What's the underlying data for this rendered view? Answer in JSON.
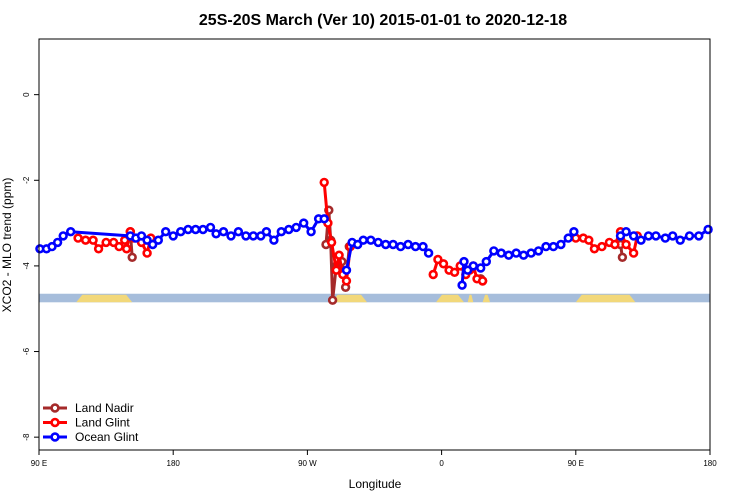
{
  "chart_data": {
    "type": "line",
    "title": "25S-20S March (Ver 10)   2015-01-01 to 2020-12-18",
    "xlabel": "Longitude",
    "ylabel": "XCO2 - MLO trend (ppm)",
    "xlim": [
      90,
      450
    ],
    "ylim": [
      -8.3,
      1.3
    ],
    "x_ticks": [
      {
        "value": 90,
        "label": "90 E"
      },
      {
        "value": 162,
        "label": "180"
      },
      {
        "value": 234,
        "label": "90 W"
      },
      {
        "value": 306,
        "label": "0"
      },
      {
        "value": 378,
        "label": "90 E"
      },
      {
        "value": 450,
        "label": "180"
      }
    ],
    "y_ticks": [
      {
        "value": 0,
        "label": "0"
      },
      {
        "value": -2,
        "label": "-2"
      },
      {
        "value": -4,
        "label": "-4"
      },
      {
        "value": -6,
        "label": "-6"
      },
      {
        "value": -8,
        "label": "-8"
      }
    ],
    "land_mask_band": {
      "y_range": [
        -4.85,
        -4.65
      ],
      "ocean_color": "#a6bddb",
      "land_color": "#f2d87a",
      "land_segments": [
        [
          110,
          140
        ],
        [
          247,
          266
        ],
        [
          303,
          318
        ],
        [
          320,
          323
        ],
        [
          328,
          332
        ],
        [
          378,
          410
        ]
      ]
    },
    "legend": {
      "position": "bottom-left"
    },
    "series": [
      {
        "name": "Land Nadir",
        "color": "#a52a2a",
        "segments": [
          [
            [
              139,
              -3.2
            ],
            [
              140,
              -3.8
            ]
          ],
          [
            [
              244,
              -3.5
            ],
            [
              245.5,
              -2.7
            ],
            [
              246.5,
              -3.4
            ],
            [
              247.5,
              -4.8
            ],
            [
              249.5,
              -4.0
            ],
            [
              252.5,
              -3.9
            ],
            [
              254.5,
              -4.5
            ],
            [
              256.5,
              -3.55
            ]
          ],
          [
            [
              327,
              -4.3
            ],
            [
              328,
              -4.35
            ]
          ],
          [
            [
              402,
              -3.5
            ],
            [
              403,
              -3.8
            ]
          ]
        ]
      },
      {
        "name": "Land Glint",
        "color": "#ff0000",
        "segments": [
          [
            [
              111,
              -3.35
            ],
            [
              115,
              -3.4
            ],
            [
              119,
              -3.4
            ],
            [
              122,
              -3.6
            ],
            [
              126,
              -3.45
            ],
            [
              130,
              -3.45
            ],
            [
              133,
              -3.55
            ],
            [
              136,
              -3.4
            ],
            [
              137,
              -3.6
            ],
            [
              139,
              -3.2
            ],
            [
              141,
              -3.35
            ],
            [
              145,
              -3.45
            ],
            [
              148,
              -3.7
            ],
            [
              150,
              -3.35
            ]
          ],
          [
            [
              243,
              -2.05
            ],
            [
              245,
              -3.0
            ],
            [
              247,
              -3.45
            ],
            [
              249.5,
              -4.1
            ],
            [
              251,
              -3.75
            ],
            [
              253,
              -4.2
            ],
            [
              255,
              -4.35
            ],
            [
              257,
              -3.55
            ]
          ],
          [
            [
              301.5,
              -4.2
            ],
            [
              304,
              -3.85
            ],
            [
              307,
              -3.95
            ],
            [
              310,
              -4.1
            ],
            [
              313,
              -4.15
            ],
            [
              316,
              -4.0
            ],
            [
              319,
              -4.2
            ],
            [
              321,
              -4.1
            ],
            [
              323,
              -4.0
            ],
            [
              325,
              -4.3
            ],
            [
              328,
              -4.35
            ]
          ],
          [
            [
              378,
              -3.35
            ],
            [
              382,
              -3.35
            ],
            [
              385,
              -3.4
            ],
            [
              388,
              -3.6
            ],
            [
              392,
              -3.55
            ],
            [
              396,
              -3.45
            ],
            [
              399,
              -3.5
            ],
            [
              402,
              -3.2
            ],
            [
              405,
              -3.5
            ],
            [
              409,
              -3.7
            ],
            [
              411,
              -3.3
            ]
          ]
        ]
      },
      {
        "name": "Ocean Glint",
        "color": "#0000ff",
        "segments": [
          [
            [
              90.5,
              -3.6
            ],
            [
              94,
              -3.6
            ],
            [
              97,
              -3.55
            ],
            [
              100,
              -3.45
            ],
            [
              103,
              -3.3
            ],
            [
              107,
              -3.2
            ],
            [
              139,
              -3.3
            ],
            [
              142,
              -3.35
            ],
            [
              145,
              -3.3
            ],
            [
              148,
              -3.4
            ],
            [
              151,
              -3.5
            ],
            [
              154,
              -3.4
            ],
            [
              158,
              -3.2
            ],
            [
              162,
              -3.3
            ],
            [
              166,
              -3.2
            ],
            [
              170,
              -3.15
            ],
            [
              174,
              -3.15
            ],
            [
              178,
              -3.15
            ],
            [
              182,
              -3.1
            ],
            [
              185,
              -3.25
            ],
            [
              189,
              -3.2
            ],
            [
              193,
              -3.3
            ],
            [
              197,
              -3.2
            ],
            [
              201,
              -3.3
            ],
            [
              205,
              -3.3
            ],
            [
              209,
              -3.3
            ],
            [
              212,
              -3.2
            ],
            [
              216,
              -3.4
            ],
            [
              220,
              -3.2
            ],
            [
              224,
              -3.15
            ],
            [
              228,
              -3.1
            ],
            [
              232,
              -3.0
            ],
            [
              236,
              -3.2
            ],
            [
              240,
              -2.9
            ],
            [
              243,
              -2.9
            ]
          ],
          [
            [
              255,
              -4.1
            ],
            [
              258,
              -3.45
            ],
            [
              261,
              -3.5
            ],
            [
              264,
              -3.4
            ],
            [
              268,
              -3.4
            ],
            [
              272,
              -3.45
            ],
            [
              276,
              -3.5
            ],
            [
              280,
              -3.5
            ],
            [
              284,
              -3.55
            ],
            [
              288,
              -3.5
            ],
            [
              292,
              -3.55
            ],
            [
              296,
              -3.55
            ],
            [
              299,
              -3.7
            ]
          ],
          [
            [
              317,
              -4.45
            ],
            [
              318,
              -3.9
            ],
            [
              320,
              -4.1
            ],
            [
              323,
              -4.0
            ],
            [
              327,
              -4.05
            ],
            [
              330,
              -3.9
            ],
            [
              334,
              -3.65
            ],
            [
              338,
              -3.7
            ],
            [
              342,
              -3.75
            ],
            [
              346,
              -3.7
            ],
            [
              350,
              -3.75
            ],
            [
              354,
              -3.7
            ],
            [
              358,
              -3.65
            ],
            [
              362,
              -3.55
            ],
            [
              366,
              -3.55
            ],
            [
              370,
              -3.5
            ],
            [
              374,
              -3.35
            ],
            [
              377,
              -3.2
            ]
          ],
          [
            [
              402,
              -3.3
            ],
            [
              405,
              -3.2
            ],
            [
              409,
              -3.3
            ],
            [
              413,
              -3.4
            ],
            [
              417,
              -3.3
            ],
            [
              421,
              -3.3
            ],
            [
              426,
              -3.35
            ],
            [
              430,
              -3.3
            ],
            [
              434,
              -3.4
            ],
            [
              439,
              -3.3
            ],
            [
              444,
              -3.3
            ],
            [
              449,
              -3.15
            ]
          ]
        ]
      }
    ]
  }
}
